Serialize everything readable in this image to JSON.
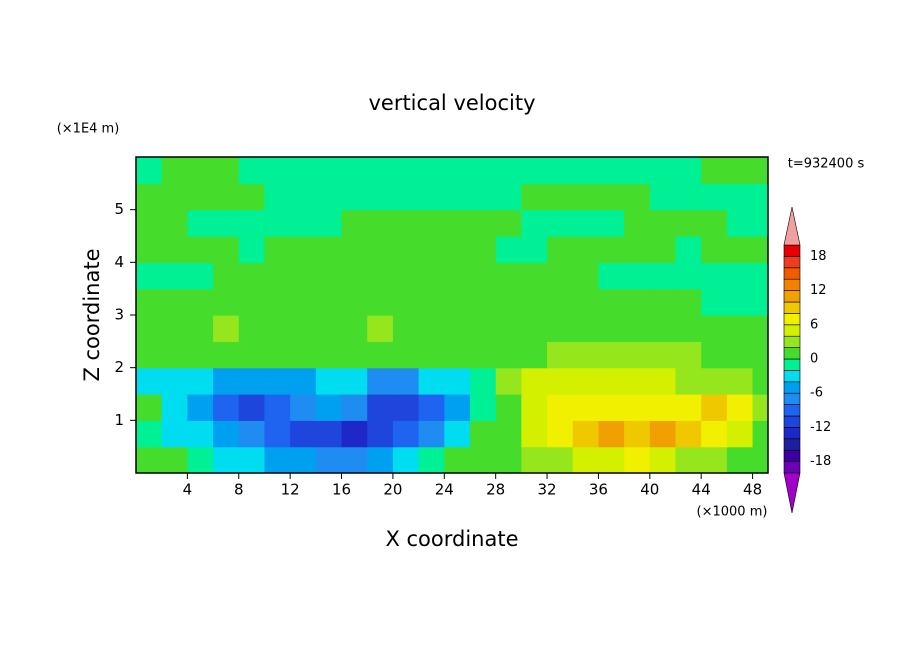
{
  "chart_data": {
    "type": "contour",
    "title": "vertical velocity",
    "x_label": "X coordinate",
    "y_label": "Z coordinate",
    "x_unit": "(×1000 m)",
    "y_unit": "(×1E4 m)",
    "annotation": "t=932400 s",
    "xlim": [
      0,
      49.2
    ],
    "ylim": [
      0,
      6
    ],
    "xticks": [
      4,
      8,
      12,
      16,
      20,
      24,
      28,
      32,
      36,
      40,
      44,
      48
    ],
    "yticks": [
      1,
      2,
      3,
      4,
      5
    ],
    "x": [
      1,
      3,
      5,
      7,
      9,
      11,
      13,
      15,
      17,
      19,
      21,
      23,
      25,
      27,
      29,
      31,
      33,
      35,
      37,
      39,
      41,
      43,
      45,
      47,
      49
    ],
    "y": [
      0.25,
      0.75,
      1.25,
      1.75,
      2.25,
      2.75,
      3.25,
      3.75,
      4.25,
      4.75,
      5.25,
      5.75
    ],
    "values": [
      [
        1,
        1,
        -1,
        -3,
        -3,
        -5,
        -5,
        -7,
        -7,
        -5,
        -3,
        -1,
        1,
        1,
        1,
        3,
        3,
        5,
        5,
        7,
        5,
        3,
        3,
        1,
        1
      ],
      [
        -1,
        -3,
        -3,
        -5,
        -7,
        -9,
        -11,
        -11,
        -13,
        -11,
        -9,
        -7,
        -3,
        1,
        1,
        5,
        7,
        9,
        11,
        9,
        11,
        9,
        7,
        5,
        1
      ],
      [
        1,
        -3,
        -5,
        -9,
        -11,
        -9,
        -7,
        -5,
        -7,
        -11,
        -11,
        -9,
        -5,
        -1,
        1,
        5,
        7,
        7,
        7,
        7,
        7,
        7,
        9,
        7,
        3
      ],
      [
        -3,
        -3,
        -3,
        -5,
        -5,
        -5,
        -5,
        -3,
        -3,
        -7,
        -7,
        -3,
        -3,
        -1,
        3,
        5,
        5,
        5,
        5,
        5,
        5,
        3,
        3,
        3,
        1
      ],
      [
        1,
        1,
        1,
        1,
        1,
        1,
        1,
        1,
        1,
        1,
        1,
        1,
        1,
        1,
        1,
        1,
        3,
        3,
        3,
        3,
        3,
        3,
        1,
        1,
        1
      ],
      [
        1,
        1,
        1,
        3,
        1,
        1,
        1,
        1,
        1,
        3,
        1,
        1,
        1,
        1,
        1,
        1,
        1,
        1,
        1,
        1,
        1,
        1,
        1,
        1,
        1
      ],
      [
        1,
        1,
        1,
        1,
        1,
        1,
        1,
        1,
        1,
        1,
        1,
        1,
        1,
        1,
        1,
        1,
        1,
        1,
        1,
        1,
        1,
        1,
        -1,
        -1,
        -1
      ],
      [
        -1,
        -1,
        -1,
        1,
        1,
        1,
        1,
        1,
        1,
        1,
        1,
        1,
        1,
        1,
        1,
        1,
        1,
        1,
        -1,
        -1,
        -1,
        -1,
        -1,
        -1,
        -1
      ],
      [
        1,
        1,
        1,
        1,
        -1,
        1,
        1,
        1,
        1,
        1,
        1,
        1,
        1,
        1,
        -1,
        -1,
        1,
        1,
        1,
        1,
        1,
        -1,
        1,
        1,
        1
      ],
      [
        1,
        1,
        -1,
        -1,
        -1,
        -1,
        -1,
        -1,
        1,
        1,
        1,
        1,
        1,
        1,
        1,
        -1,
        -1,
        -1,
        -1,
        1,
        1,
        1,
        1,
        -1,
        -1
      ],
      [
        1,
        1,
        1,
        1,
        1,
        -1,
        -1,
        -1,
        -1,
        -1,
        -1,
        -1,
        -1,
        -1,
        -1,
        1,
        1,
        1,
        1,
        1,
        -1,
        -1,
        -1,
        -1,
        -1
      ],
      [
        -1,
        1,
        1,
        1,
        -1,
        -1,
        -1,
        -1,
        -1,
        -1,
        -1,
        -1,
        -1,
        -1,
        -1,
        -1,
        -1,
        -1,
        -1,
        -1,
        -1,
        -1,
        1,
        1,
        1
      ]
    ],
    "levels": [
      -20,
      -18,
      -16,
      -14,
      -12,
      -10,
      -8,
      -6,
      -4,
      -2,
      0,
      2,
      4,
      6,
      8,
      10,
      12,
      14,
      16,
      18,
      20
    ],
    "colors": [
      "#a000c8",
      "#6e00b4",
      "#3c00a0",
      "#1e1ea0",
      "#1e28c8",
      "#1e46dc",
      "#1e64f0",
      "#1e8cf0",
      "#00a0f0",
      "#00dcf0",
      "#00f096",
      "#46dc2c",
      "#96e61e",
      "#d2f000",
      "#f0f000",
      "#f0c800",
      "#f0a000",
      "#f08200",
      "#f05a00",
      "#f03c1e",
      "#e60000",
      "#f0a0a0"
    ],
    "colorbar_ticks": [
      18,
      12,
      6,
      0,
      -6,
      -12,
      -18
    ]
  }
}
